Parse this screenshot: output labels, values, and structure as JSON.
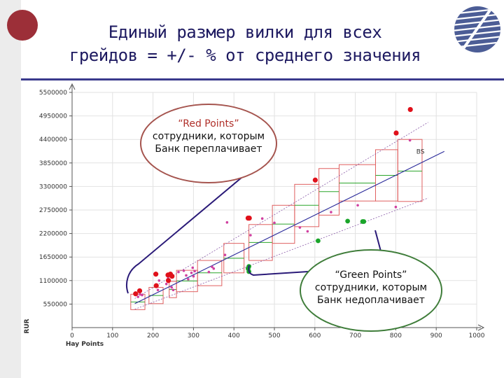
{
  "slide": {
    "title_line1": "Единый размер вилки для всех",
    "title_line2": "грейдов = +/- % от среднего значения"
  },
  "callouts": {
    "red": {
      "title": "“Red Points”",
      "line1": "сотрудники, которым",
      "line2": "Банк переплачивает"
    },
    "green": {
      "title": "“Green Points”",
      "line1": "сотрудники, которым",
      "line2": "Банк недоплачивает"
    }
  },
  "colors": {
    "red_points": "#e0101a",
    "green_points": "#1aa52a",
    "pink_points": "#d040a0",
    "regression": "#2a2a9a",
    "box": "#e06060",
    "median": "#2aa52a",
    "bracket": "#2a1a78",
    "title": "#1d1960"
  },
  "chart_data": {
    "type": "scatter",
    "xlabel": "Hay Points",
    "ylabel": "RUR",
    "xlim": [
      0,
      1000
    ],
    "ylim": [
      0,
      5500000
    ],
    "x_ticks": [
      "0",
      "100",
      "200",
      "300",
      "400",
      "500",
      "600",
      "700",
      "800",
      "900",
      "1000"
    ],
    "y_ticks": [
      "550000",
      "1100000",
      "1650000",
      "2200000",
      "2750000",
      "3300000",
      "3850000",
      "4400000",
      "4950000",
      "5500000"
    ],
    "y_tick_values": [
      550000,
      1100000,
      1650000,
      2200000,
      2750000,
      3300000,
      3850000,
      4400000,
      4950000,
      5500000
    ],
    "grid": true,
    "regression_label": "BS",
    "regression": {
      "x": [
        155,
        920
      ],
      "y": [
        560000,
        4120000
      ]
    },
    "upper_bound": {
      "x": [
        155,
        880
      ],
      "y": [
        680000,
        4800000
      ]
    },
    "lower_bound": {
      "x": [
        155,
        880
      ],
      "y": [
        430000,
        3030000
      ]
    },
    "grade_boxes": [
      {
        "x0": 145,
        "x1": 180,
        "low": 420000,
        "high": 780000,
        "median": 600000
      },
      {
        "x0": 190,
        "x1": 225,
        "low": 560000,
        "high": 940000,
        "median": 750000
      },
      {
        "x0": 240,
        "x1": 258,
        "low": 700000,
        "high": 1080000,
        "median": 890000
      },
      {
        "x0": 258,
        "x1": 310,
        "low": 840000,
        "high": 1340000,
        "median": 1090000
      },
      {
        "x0": 310,
        "x1": 370,
        "low": 980000,
        "high": 1570000,
        "median": 1280000
      },
      {
        "x0": 375,
        "x1": 425,
        "low": 1280000,
        "high": 1970000,
        "median": 1620000
      },
      {
        "x0": 437,
        "x1": 495,
        "low": 1570000,
        "high": 2410000,
        "median": 1990000
      },
      {
        "x0": 495,
        "x1": 550,
        "low": 1970000,
        "high": 2860000,
        "median": 2420000
      },
      {
        "x0": 550,
        "x1": 610,
        "low": 2360000,
        "high": 3350000,
        "median": 2860000
      },
      {
        "x0": 610,
        "x1": 660,
        "low": 2630000,
        "high": 3720000,
        "median": 3180000
      },
      {
        "x0": 660,
        "x1": 750,
        "low": 2960000,
        "high": 3810000,
        "median": 3380000
      },
      {
        "x0": 750,
        "x1": 805,
        "low": 2960000,
        "high": 4160000,
        "median": 3560000
      },
      {
        "x0": 805,
        "x1": 865,
        "low": 2950000,
        "high": 4400000,
        "median": 3660000
      }
    ],
    "series": [
      {
        "name": "Red Points",
        "x": [
          157,
          167,
          208,
          207,
          237,
          243,
          238,
          247,
          435,
          438,
          601,
          801,
          836
        ],
        "y": [
          790000,
          860000,
          980000,
          1250000,
          1230000,
          1250000,
          1100000,
          1200000,
          2560000,
          2560000,
          3450000,
          4550000,
          5100000
        ]
      },
      {
        "name": "Green Points",
        "x": [
          435,
          437,
          437,
          608,
          681,
          718,
          721
        ],
        "y": [
          1380000,
          1430000,
          1310000,
          2030000,
          2490000,
          2480000,
          2480000
        ]
      },
      {
        "name": "Pink Points",
        "x": [
          163,
          168,
          173,
          212,
          215,
          233,
          237,
          246,
          250,
          263,
          276,
          282,
          287,
          295,
          298,
          300,
          303,
          338,
          346,
          350,
          378,
          383,
          441,
          470,
          500,
          563,
          582,
          640,
          706,
          800,
          835
        ],
        "y": [
          720000,
          780000,
          760000,
          880000,
          1100000,
          1020000,
          1150000,
          940000,
          880000,
          1300000,
          1330000,
          1220000,
          1130000,
          1280000,
          1400000,
          1200000,
          1320000,
          1300000,
          1420000,
          1380000,
          1700000,
          2460000,
          2160000,
          2550000,
          2450000,
          2340000,
          2250000,
          2700000,
          2860000,
          2820000,
          4380000
        ]
      }
    ]
  }
}
